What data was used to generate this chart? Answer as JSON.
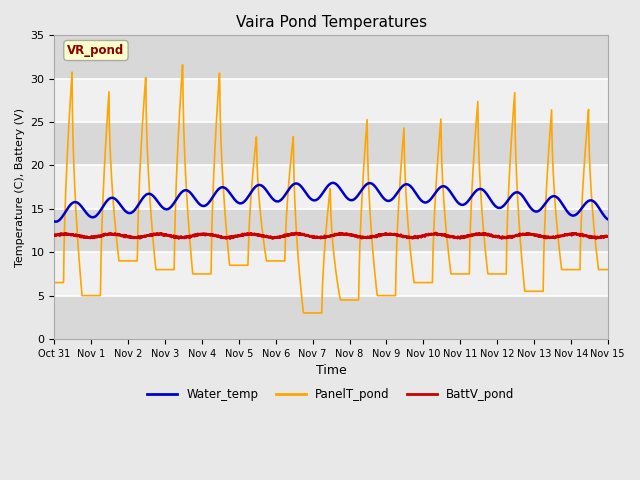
{
  "title": "Vaira Pond Temperatures",
  "xlabel": "Time",
  "ylabel": "Temperature (C), Battery (V)",
  "ylim": [
    0,
    35
  ],
  "water_temp_color": "#0000CC",
  "panel_temp_color": "#FFA500",
  "batt_color": "#CC0000",
  "bg_light": "#F0F0F0",
  "bg_dark": "#D8D8D8",
  "annotation_text": "VR_pond",
  "annotation_color": "#8B0000",
  "annotation_bg": "#FFFFCC",
  "annotation_edge": "#AAAAAA",
  "tick_labels": [
    "Oct 31",
    "Nov 1",
    "Nov 2",
    "Nov 3",
    "Nov 4",
    "Nov 5",
    "Nov 6",
    "Nov 7",
    "Nov 8",
    "Nov 9",
    "Nov 10",
    "Nov 11",
    "Nov 12",
    "Nov 13",
    "Nov 14",
    "Nov 15"
  ],
  "legend_labels": [
    "Water_temp",
    "PanelT_pond",
    "BattV_pond"
  ]
}
